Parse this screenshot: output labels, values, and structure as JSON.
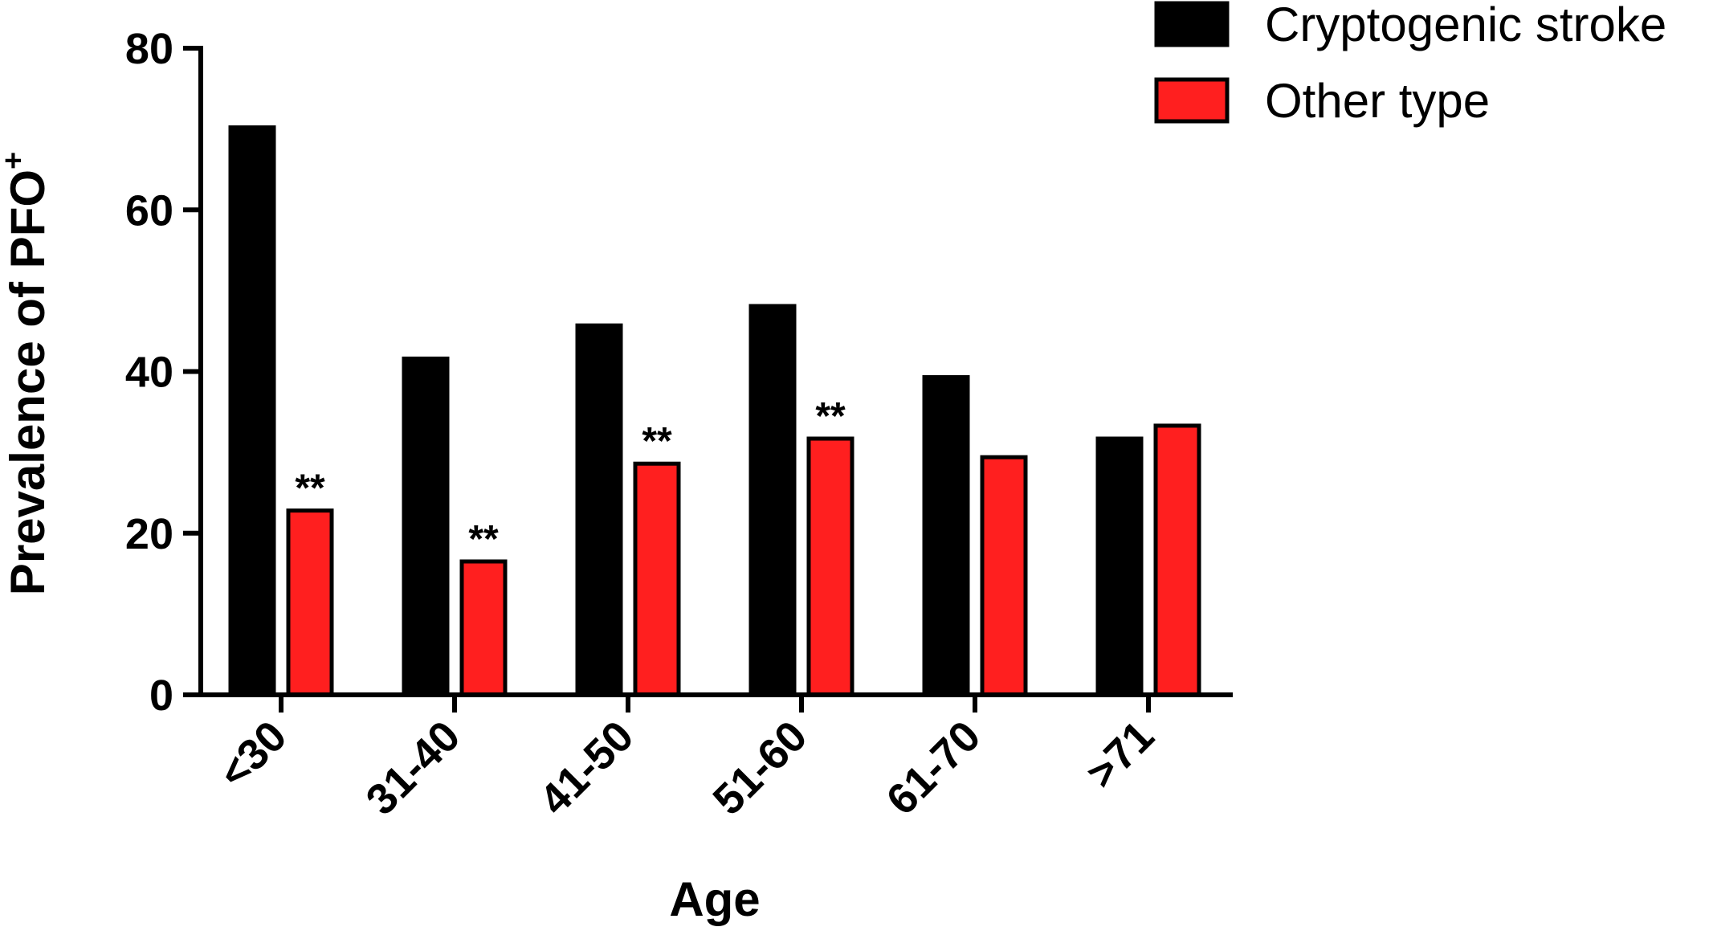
{
  "chart_data": {
    "type": "bar",
    "title": "",
    "xlabel": "Age",
    "ylabel": "Prevalence of PFO",
    "ylabel_superscript": "+",
    "ylim": [
      0,
      80
    ],
    "yticks": [
      0,
      20,
      40,
      60,
      80
    ],
    "categories": [
      "<30",
      "31-40",
      "41-50",
      "51-60",
      "61-70",
      ">71"
    ],
    "series": [
      {
        "name": "Cryptogenic stroke",
        "color": "#000000",
        "values": [
          70.2,
          41.6,
          45.7,
          48.1,
          39.3,
          31.7
        ]
      },
      {
        "name": "Other type",
        "color": "#ff1f1f",
        "values": [
          22.8,
          16.5,
          28.6,
          31.7,
          29.4,
          33.3
        ]
      }
    ],
    "annotations": [
      {
        "category": "<30",
        "series": "Other type",
        "text": "**"
      },
      {
        "category": "31-40",
        "series": "Other type",
        "text": "**"
      },
      {
        "category": "41-50",
        "series": "Other type",
        "text": "**"
      },
      {
        "category": "51-60",
        "series": "Other type",
        "text": "**"
      }
    ],
    "legend_position": "top-right",
    "grid": false
  }
}
